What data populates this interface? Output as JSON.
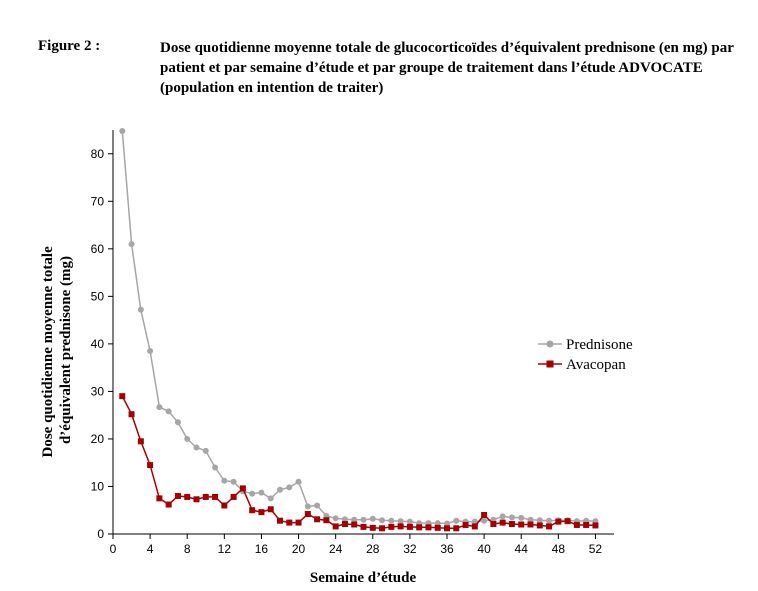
{
  "figure": {
    "label": "Figure 2 :",
    "title": "Dose quotidienne moyenne totale de glucocorticoïdes d’équivalent prednisone (en mg) par patient et par semaine d’étude et par groupe de traitement dans l’étude ADVOCATE (population en intention de traiter)"
  },
  "chart_data": {
    "type": "line",
    "xlabel": "Semaine d’étude",
    "ylabel_lines": [
      "Dose quotidienne moyenne totale",
      "d’équivalent prednisone (mg)"
    ],
    "xlim": [
      0,
      54
    ],
    "ylim": [
      0,
      85
    ],
    "xticks": [
      0,
      4,
      8,
      12,
      16,
      20,
      24,
      28,
      32,
      36,
      40,
      44,
      48,
      52
    ],
    "yticks": [
      0,
      10,
      20,
      30,
      40,
      50,
      60,
      70,
      80
    ],
    "legend_position": "right",
    "series": [
      {
        "name": "Prednisone",
        "color": "#a6a6a6",
        "marker": "circle",
        "x": [
          1,
          2,
          3,
          4,
          5,
          6,
          7,
          8,
          9,
          10,
          11,
          12,
          13,
          14,
          15,
          16,
          17,
          18,
          19,
          20,
          21,
          22,
          23,
          24,
          25,
          26,
          27,
          28,
          29,
          30,
          31,
          32,
          33,
          34,
          35,
          36,
          37,
          38,
          39,
          40,
          41,
          42,
          43,
          44,
          45,
          46,
          47,
          48,
          49,
          50,
          51,
          52
        ],
        "y": [
          84.8,
          61.0,
          47.2,
          38.5,
          26.7,
          25.8,
          23.5,
          20.0,
          18.2,
          17.5,
          14.0,
          11.2,
          11.0,
          9.0,
          8.5,
          8.7,
          7.5,
          9.3,
          9.8,
          11.0,
          5.8,
          6.0,
          3.8,
          3.3,
          3.1,
          3.0,
          3.0,
          3.2,
          2.9,
          2.8,
          2.7,
          2.6,
          2.3,
          2.3,
          2.3,
          2.2,
          2.8,
          2.6,
          2.6,
          2.8,
          3.0,
          3.7,
          3.5,
          3.4,
          3.0,
          2.9,
          2.8,
          2.9,
          2.9,
          2.7,
          2.8,
          2.7
        ]
      },
      {
        "name": "Avacopan",
        "color": "#a50000",
        "marker": "square",
        "x": [
          1,
          2,
          3,
          4,
          5,
          6,
          7,
          8,
          9,
          10,
          11,
          12,
          13,
          14,
          15,
          16,
          17,
          18,
          19,
          20,
          21,
          22,
          23,
          24,
          25,
          26,
          27,
          28,
          29,
          30,
          31,
          32,
          33,
          34,
          35,
          36,
          37,
          38,
          39,
          40,
          41,
          42,
          43,
          44,
          45,
          46,
          47,
          48,
          49,
          50,
          51,
          52
        ],
        "y": [
          29.0,
          25.2,
          19.5,
          14.5,
          7.5,
          6.2,
          8.0,
          7.8,
          7.3,
          7.8,
          7.8,
          6.0,
          7.8,
          9.6,
          5.0,
          4.6,
          5.2,
          2.8,
          2.4,
          2.4,
          4.2,
          3.1,
          2.9,
          1.6,
          2.1,
          2.0,
          1.5,
          1.3,
          1.2,
          1.5,
          1.6,
          1.5,
          1.4,
          1.4,
          1.3,
          1.2,
          1.2,
          1.9,
          1.6,
          4.0,
          2.1,
          2.4,
          2.1,
          2.0,
          2.0,
          1.8,
          1.6,
          2.6,
          2.7,
          1.9,
          1.9,
          1.8
        ]
      }
    ]
  }
}
